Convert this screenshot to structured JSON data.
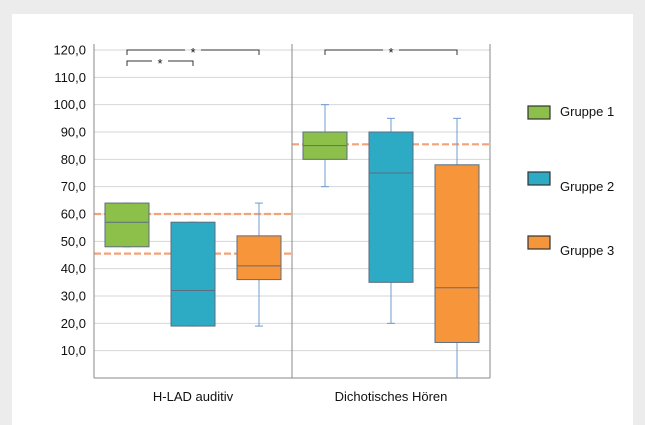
{
  "chart_data": {
    "type": "boxplot",
    "ylim": [
      0,
      120
    ],
    "yticks": [
      "10,0",
      "20,0",
      "30,0",
      "40,0",
      "50,0",
      "60,0",
      "70,0",
      "80,0",
      "90,0",
      "100,0",
      "110,0",
      "120,0"
    ],
    "ytick_values": [
      10,
      20,
      30,
      40,
      50,
      60,
      70,
      80,
      90,
      100,
      110,
      120
    ],
    "grid": true,
    "legend_position": "right",
    "categories": [
      "H-LAD auditiv",
      "Dichotisches Hören"
    ],
    "series": [
      {
        "name": "Gruppe 1",
        "color": "#8cc04a",
        "boxes": [
          {
            "whisker_low": 48,
            "q1": 48,
            "median": 57,
            "q3": 64,
            "whisker_high": 64
          },
          {
            "whisker_low": 70,
            "q1": 80,
            "median": 85,
            "q3": 90,
            "whisker_high": 100
          }
        ]
      },
      {
        "name": "Gruppe 2",
        "color": "#2eabc4",
        "boxes": [
          {
            "whisker_low": 19,
            "q1": 19,
            "median": 32,
            "q3": 57,
            "whisker_high": 57
          },
          {
            "whisker_low": 20,
            "q1": 35,
            "median": 75,
            "q3": 90,
            "whisker_high": 95
          }
        ]
      },
      {
        "name": "Gruppe 3",
        "color": "#f7953a",
        "boxes": [
          {
            "whisker_low": 19,
            "q1": 36,
            "median": 41,
            "q3": 52,
            "whisker_high": 64
          },
          {
            "whisker_low": 0,
            "q1": 13,
            "median": 33,
            "q3": 78,
            "whisker_high": 95
          }
        ]
      }
    ],
    "reference_lines": [
      {
        "category": 0,
        "value": 60,
        "color": "#f4a27a"
      },
      {
        "category": 0,
        "value": 45.5,
        "color": "#f4a27a"
      },
      {
        "category": 1,
        "value": 85.5,
        "color": "#f4a27a"
      }
    ],
    "significance": [
      {
        "category": 0,
        "from": 0,
        "to": 2,
        "level": 1,
        "label": "*"
      },
      {
        "category": 0,
        "from": 0,
        "to": 1,
        "level": 0,
        "label": "*"
      },
      {
        "category": 1,
        "from": 0,
        "to": 2,
        "level": 1,
        "label": "*"
      }
    ]
  }
}
